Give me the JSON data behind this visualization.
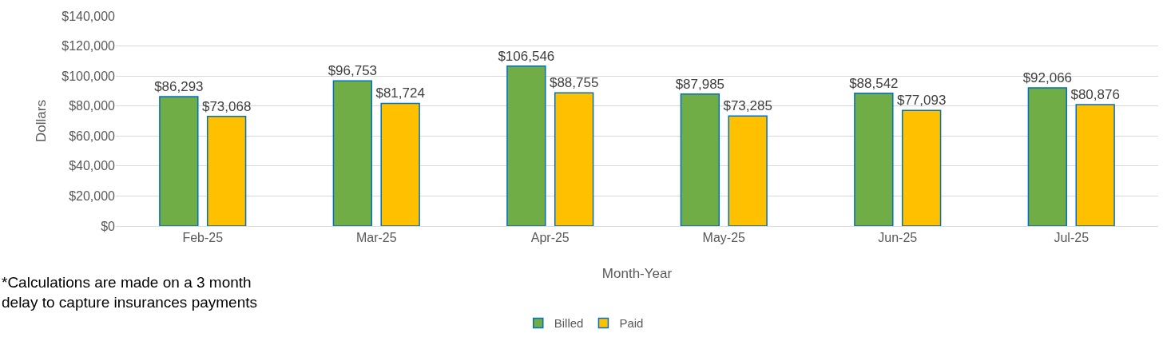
{
  "chart_data": {
    "type": "bar",
    "xlabel": "Month-Year",
    "ylabel": "Dollars",
    "categories": [
      "Feb-25",
      "Mar-25",
      "Apr-25",
      "May-25",
      "Jun-25",
      "Jul-25"
    ],
    "series": [
      {
        "name": "Billed",
        "color": "#70ad47",
        "values": [
          86293,
          96753,
          106546,
          87985,
          88542,
          92066
        ],
        "value_labels": [
          "$86,293",
          "$96,753",
          "$106,546",
          "$87,985",
          "$88,542",
          "$92,066"
        ]
      },
      {
        "name": "Paid",
        "color": "#ffc000",
        "values": [
          73068,
          81724,
          88755,
          73285,
          77093,
          80876
        ],
        "value_labels": [
          "$73,068",
          "$81,724",
          "$88,755",
          "$73,285",
          "$77,093",
          "$80,876"
        ]
      }
    ],
    "ylim": [
      0,
      140000
    ],
    "yticks": [
      {
        "value": 0,
        "label": "$0"
      },
      {
        "value": 20000,
        "label": "$20,000"
      },
      {
        "value": 40000,
        "label": "$40,000"
      },
      {
        "value": 60000,
        "label": "$60,000"
      },
      {
        "value": 80000,
        "label": "$80,000"
      },
      {
        "value": 100000,
        "label": "$100,000"
      },
      {
        "value": 120000,
        "label": "$120,000"
      },
      {
        "value": 140000,
        "label": "$140,000"
      }
    ],
    "grid": "y",
    "legend": "bottom",
    "annotations": [
      "*Calculations are made on a 3 month\ndelay to capture insurances payments"
    ]
  }
}
